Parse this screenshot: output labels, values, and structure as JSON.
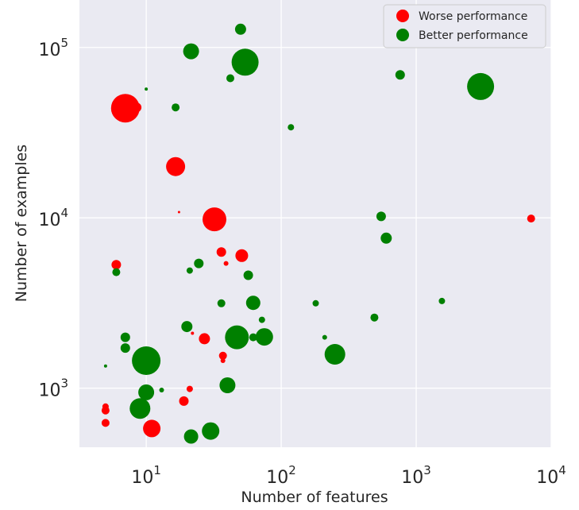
{
  "chart_data": {
    "type": "scatter",
    "title": "",
    "xlabel": "Number of features",
    "ylabel": "Number of examples",
    "xscale": "log",
    "yscale": "log",
    "xlim": [
      3.2,
      10000
    ],
    "ylim": [
      450,
      190000
    ],
    "grid": true,
    "legend_position": "top-right",
    "colors": {
      "worse": "#ff0000",
      "better": "#008000",
      "background": "#eaeaf2"
    },
    "x_ticks": [
      {
        "base": "10",
        "exp": "1",
        "value": 10
      },
      {
        "base": "10",
        "exp": "2",
        "value": 100
      },
      {
        "base": "10",
        "exp": "3",
        "value": 1000
      },
      {
        "base": "10",
        "exp": "4",
        "value": 10000
      }
    ],
    "y_ticks": [
      {
        "base": "10",
        "exp": "3",
        "value": 1000
      },
      {
        "base": "10",
        "exp": "4",
        "value": 10000
      },
      {
        "base": "10",
        "exp": "5",
        "value": 100000
      }
    ],
    "series": [
      {
        "name": "Worse performance",
        "key": "worse",
        "points": [
          {
            "x": 7,
            "y": 44000,
            "s": 18
          },
          {
            "x": 8.5,
            "y": 44500,
            "s": 6
          },
          {
            "x": 16.5,
            "y": 20000,
            "s": 12
          },
          {
            "x": 17.5,
            "y": 10800,
            "s": 1.5
          },
          {
            "x": 32,
            "y": 9800,
            "s": 15
          },
          {
            "x": 6,
            "y": 5300,
            "s": 6
          },
          {
            "x": 36,
            "y": 6300,
            "s": 6
          },
          {
            "x": 39,
            "y": 5400,
            "s": 3
          },
          {
            "x": 51,
            "y": 6000,
            "s": 8
          },
          {
            "x": 22,
            "y": 2100,
            "s": 2
          },
          {
            "x": 27,
            "y": 1950,
            "s": 7
          },
          {
            "x": 37,
            "y": 1550,
            "s": 5
          },
          {
            "x": 37,
            "y": 1450,
            "s": 3
          },
          {
            "x": 21,
            "y": 990,
            "s": 4
          },
          {
            "x": 19,
            "y": 840,
            "s": 6
          },
          {
            "x": 5,
            "y": 780,
            "s": 4
          },
          {
            "x": 5,
            "y": 740,
            "s": 5
          },
          {
            "x": 5,
            "y": 625,
            "s": 5
          },
          {
            "x": 11,
            "y": 580,
            "s": 11
          },
          {
            "x": 7100,
            "y": 9900,
            "s": 5
          }
        ]
      },
      {
        "name": "Better performance",
        "key": "better",
        "points": [
          {
            "x": 50,
            "y": 128000,
            "s": 7
          },
          {
            "x": 21.5,
            "y": 95000,
            "s": 10
          },
          {
            "x": 54,
            "y": 82000,
            "s": 17
          },
          {
            "x": 42,
            "y": 66000,
            "s": 5
          },
          {
            "x": 10,
            "y": 57000,
            "s": 2
          },
          {
            "x": 16.5,
            "y": 44500,
            "s": 5
          },
          {
            "x": 118,
            "y": 34000,
            "s": 4
          },
          {
            "x": 760,
            "y": 69000,
            "s": 6
          },
          {
            "x": 3000,
            "y": 59000,
            "s": 17
          },
          {
            "x": 550,
            "y": 10200,
            "s": 6
          },
          {
            "x": 600,
            "y": 7600,
            "s": 7
          },
          {
            "x": 6,
            "y": 4800,
            "s": 5
          },
          {
            "x": 21,
            "y": 4900,
            "s": 4
          },
          {
            "x": 24.5,
            "y": 5400,
            "s": 6
          },
          {
            "x": 57,
            "y": 4600,
            "s": 6
          },
          {
            "x": 36,
            "y": 3150,
            "s": 5
          },
          {
            "x": 62,
            "y": 3170,
            "s": 9
          },
          {
            "x": 72,
            "y": 2520,
            "s": 4
          },
          {
            "x": 180,
            "y": 3150,
            "s": 4
          },
          {
            "x": 490,
            "y": 2600,
            "s": 5
          },
          {
            "x": 1550,
            "y": 3250,
            "s": 4
          },
          {
            "x": 7,
            "y": 1990,
            "s": 6
          },
          {
            "x": 7,
            "y": 1720,
            "s": 6
          },
          {
            "x": 20,
            "y": 2300,
            "s": 7
          },
          {
            "x": 47,
            "y": 1990,
            "s": 15
          },
          {
            "x": 62,
            "y": 1990,
            "s": 5
          },
          {
            "x": 75,
            "y": 2000,
            "s": 11
          },
          {
            "x": 210,
            "y": 1990,
            "s": 3
          },
          {
            "x": 250,
            "y": 1580,
            "s": 13
          },
          {
            "x": 5,
            "y": 1350,
            "s": 2
          },
          {
            "x": 10,
            "y": 1450,
            "s": 18
          },
          {
            "x": 10,
            "y": 945,
            "s": 10
          },
          {
            "x": 13,
            "y": 975,
            "s": 3
          },
          {
            "x": 9,
            "y": 760,
            "s": 13
          },
          {
            "x": 40,
            "y": 1040,
            "s": 10
          },
          {
            "x": 21.5,
            "y": 520,
            "s": 9
          },
          {
            "x": 30,
            "y": 560,
            "s": 11
          }
        ]
      }
    ]
  }
}
